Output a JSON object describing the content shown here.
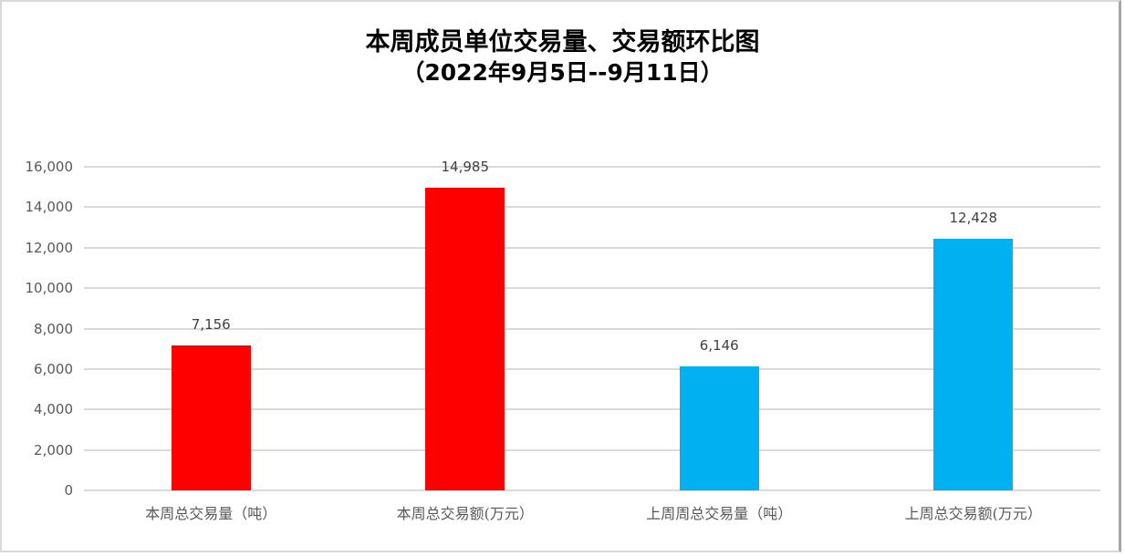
{
  "chart_data": {
    "type": "bar",
    "title": "本周成员单位交易量、交易额环比图",
    "subtitle": "（2022年9月5日--9月11日）",
    "categories": [
      "本周总交易量（吨）",
      "本周总交易额(万元）",
      "上周周总交易量（吨）",
      "上周总交易额(万元）"
    ],
    "values": [
      7156,
      14985,
      6146,
      12428
    ],
    "value_labels": [
      "7,156",
      "14,985",
      "6,146",
      "12,428"
    ],
    "bar_colors": [
      "#ff0000",
      "#ff0000",
      "#00b0f0",
      "#00b0f0"
    ],
    "xlabel": "",
    "ylabel": "",
    "ylim": [
      0,
      16000
    ],
    "yticks": [
      0,
      2000,
      4000,
      6000,
      8000,
      10000,
      12000,
      14000,
      16000
    ],
    "ytick_labels": [
      "0",
      "2,000",
      "4,000",
      "6,000",
      "8,000",
      "10,000",
      "12,000",
      "14,000",
      "16,000"
    ],
    "grid": true,
    "legend": "none"
  },
  "colors": {
    "this_week": "#ff0000",
    "last_week": "#00b0f0",
    "grid": "#d9d9d9",
    "axis_text": "#595959"
  }
}
